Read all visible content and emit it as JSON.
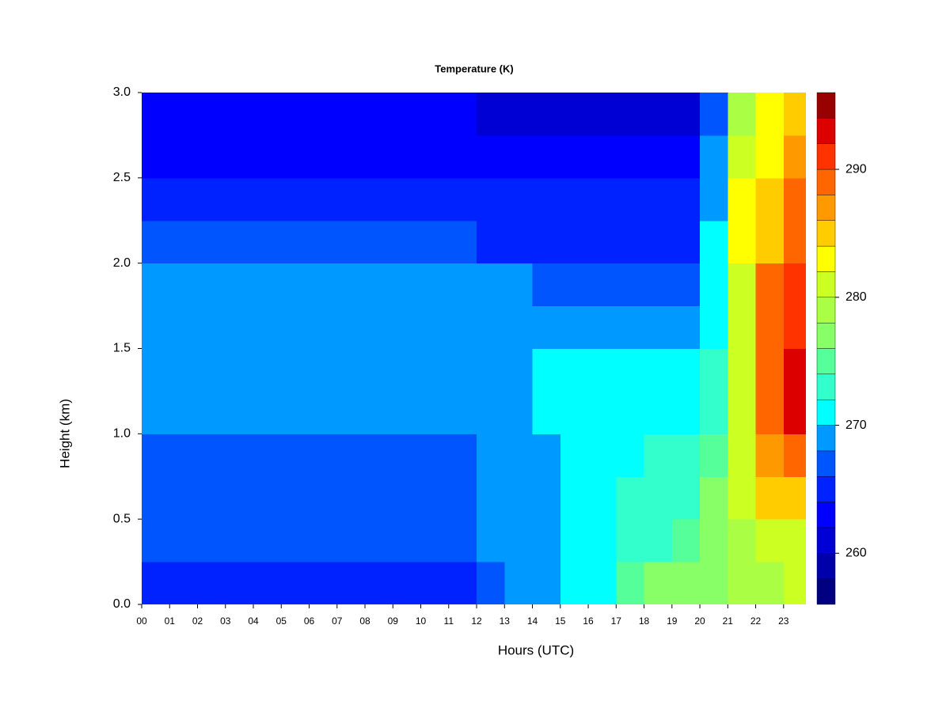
{
  "chart_data": {
    "type": "heatmap",
    "title": "Temperature (K)",
    "x_label": "Hours (UTC)",
    "y_label": "Height (km)",
    "xlim": [
      0,
      23.8
    ],
    "ylim": [
      0,
      3
    ],
    "xticks": [
      {
        "value": 0,
        "label": "00"
      },
      {
        "value": 1,
        "label": "01"
      },
      {
        "value": 2,
        "label": "02"
      },
      {
        "value": 3,
        "label": "03"
      },
      {
        "value": 4,
        "label": "04"
      },
      {
        "value": 5,
        "label": "05"
      },
      {
        "value": 6,
        "label": "06"
      },
      {
        "value": 7,
        "label": "07"
      },
      {
        "value": 8,
        "label": "08"
      },
      {
        "value": 9,
        "label": "09"
      },
      {
        "value": 10,
        "label": "10"
      },
      {
        "value": 11,
        "label": "11"
      },
      {
        "value": 12,
        "label": "12"
      },
      {
        "value": 13,
        "label": "13"
      },
      {
        "value": 14,
        "label": "14"
      },
      {
        "value": 15,
        "label": "15"
      },
      {
        "value": 16,
        "label": "16"
      },
      {
        "value": 17,
        "label": "17"
      },
      {
        "value": 18,
        "label": "18"
      },
      {
        "value": 19,
        "label": "19"
      },
      {
        "value": 20,
        "label": "20"
      },
      {
        "value": 21,
        "label": "21"
      },
      {
        "value": 22,
        "label": "22"
      },
      {
        "value": 23,
        "label": "23"
      }
    ],
    "yticks": [
      {
        "value": 0,
        "label": "0.0"
      },
      0.5,
      {
        "value": 1,
        "label": "1.0"
      },
      1.5,
      {
        "value": 2,
        "label": "2.0"
      },
      2.5,
      {
        "value": 3,
        "label": "3.0"
      }
    ],
    "x": [
      0.5,
      1.5,
      2.5,
      3.5,
      4.5,
      5.5,
      6.5,
      7.5,
      8.5,
      9.5,
      10.5,
      11.5,
      12.5,
      13.5,
      14.5,
      15.5,
      16.5,
      17.5,
      18.5,
      19.5,
      20.5,
      21.5,
      22.5,
      23.5
    ],
    "y": [
      0.125,
      0.375,
      0.625,
      0.875,
      1.125,
      1.375,
      1.625,
      1.875,
      2.125,
      2.375,
      2.625,
      2.875
    ],
    "z": [
      [
        265,
        265,
        265,
        265,
        265,
        265,
        265,
        265,
        265,
        265,
        265,
        265,
        267,
        269,
        269,
        271,
        271,
        275,
        277,
        277,
        277,
        279,
        279,
        281
      ],
      [
        267,
        267,
        267,
        267,
        267,
        267,
        267,
        267,
        267,
        267,
        267,
        267,
        269,
        269,
        269,
        271,
        271,
        273,
        273,
        275,
        277,
        279,
        281,
        281
      ],
      [
        267,
        267,
        267,
        267,
        267,
        267,
        267,
        267,
        267,
        267,
        267,
        267,
        269,
        269,
        269,
        271,
        271,
        273,
        273,
        273,
        277,
        281,
        285,
        285
      ],
      [
        267,
        267,
        267,
        267,
        267,
        267,
        267,
        267,
        267,
        267,
        267,
        267,
        269,
        269,
        269,
        271,
        271,
        271,
        273,
        273,
        275,
        281,
        287,
        289
      ],
      [
        269,
        269,
        269,
        269,
        269,
        269,
        269,
        269,
        269,
        269,
        269,
        269,
        269,
        269,
        271,
        271,
        271,
        271,
        271,
        271,
        273,
        281,
        289,
        293
      ],
      [
        269,
        269,
        269,
        269,
        269,
        269,
        269,
        269,
        269,
        269,
        269,
        269,
        269,
        269,
        271,
        271,
        271,
        271,
        271,
        271,
        273,
        281,
        289,
        293
      ],
      [
        269,
        269,
        269,
        269,
        269,
        269,
        269,
        269,
        269,
        269,
        269,
        269,
        269,
        269,
        269,
        269,
        269,
        269,
        269,
        269,
        271,
        281,
        289,
        291
      ],
      [
        269,
        269,
        269,
        269,
        269,
        269,
        269,
        269,
        269,
        269,
        269,
        269,
        269,
        269,
        267,
        267,
        267,
        267,
        267,
        267,
        271,
        281,
        289,
        291
      ],
      [
        267,
        267,
        267,
        267,
        267,
        267,
        267,
        267,
        267,
        267,
        267,
        267,
        265,
        265,
        265,
        265,
        265,
        265,
        265,
        265,
        271,
        283,
        285,
        289
      ],
      [
        265,
        265,
        265,
        265,
        265,
        265,
        265,
        265,
        265,
        265,
        265,
        265,
        265,
        265,
        265,
        265,
        265,
        265,
        265,
        265,
        269,
        283,
        285,
        289
      ],
      [
        263,
        263,
        263,
        263,
        263,
        263,
        263,
        263,
        263,
        263,
        263,
        263,
        263,
        263,
        263,
        263,
        263,
        263,
        263,
        263,
        269,
        281,
        283,
        287
      ],
      [
        263,
        263,
        263,
        263,
        263,
        263,
        263,
        263,
        263,
        263,
        263,
        263,
        261,
        261,
        261,
        261,
        261,
        261,
        261,
        261,
        267,
        279,
        283,
        285
      ]
    ],
    "levels": [
      256,
      258,
      260,
      262,
      264,
      266,
      268,
      270,
      272,
      274,
      276,
      278,
      280,
      282,
      284,
      286,
      288,
      290,
      292,
      294,
      296
    ],
    "colors": [
      "#000080",
      "#0000aa",
      "#0000d4",
      "#0000ff",
      "#0022ff",
      "#0055ff",
      "#0099ff",
      "#00ffff",
      "#33ffcc",
      "#55ff99",
      "#88ff66",
      "#aaff44",
      "#ccff22",
      "#ffff00",
      "#ffcc00",
      "#ff9900",
      "#ff6600",
      "#ff3300",
      "#dd0000",
      "#990000"
    ],
    "colorbar_ticks": [
      260,
      270,
      280,
      290
    ]
  }
}
